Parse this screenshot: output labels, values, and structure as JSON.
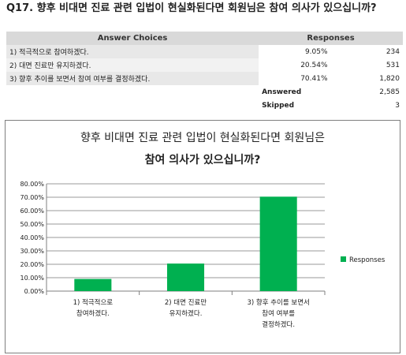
{
  "question": {
    "title": "Q17. 향후 비대면 진료 관련 입법이 현실화된다면 회원님은 참여 의사가 있으십니까?"
  },
  "table": {
    "headers": [
      "Answer Choices",
      "Responses"
    ],
    "rows": [
      {
        "choice": "1) 적극적으로 참여하겠다.",
        "percent": "9.05%",
        "count": "234"
      },
      {
        "choice": "2) 대면 진료만 유지하겠다.",
        "percent": "20.54%",
        "count": "531"
      },
      {
        "choice": "3) 향후 추이를 보면서 참여 여부를 결정하겠다.",
        "percent": "70.41%",
        "count": "1,820"
      }
    ],
    "answered_label": "Answered",
    "answered_value": "2,585",
    "skipped_label": "Skipped",
    "skipped_value": "3"
  },
  "chart_data": {
    "type": "bar",
    "title_lines": [
      "향후 비대면 진료 관련 입법이 현실화된다면 회원님은",
      "참여 의사가 있으십니까?"
    ],
    "categories": [
      [
        "1) 적극적으로",
        "참여하겠다."
      ],
      [
        "2) 대면 진료만",
        "유지하겠다."
      ],
      [
        "3) 향후 추이를 보면서",
        "참여 여부를",
        "결정하겠다."
      ]
    ],
    "series": [
      {
        "name": "Responses",
        "values": [
          0.0905,
          0.2054,
          0.7041
        ],
        "color": "#00b050"
      }
    ],
    "ylim": [
      0,
      0.8
    ],
    "yticks": [
      "0.00%",
      "10.00%",
      "20.00%",
      "30.00%",
      "40.00%",
      "50.00%",
      "60.00%",
      "70.00%",
      "80.00%"
    ],
    "grid": true,
    "legend_position": "right"
  }
}
